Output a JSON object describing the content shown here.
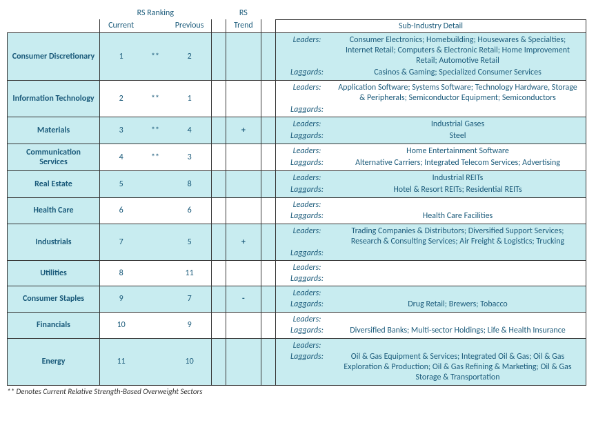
{
  "headers": {
    "rs_ranking": "RS Ranking",
    "current": "Current",
    "previous": "Previous",
    "rs_trend": "RS",
    "trend_sub": "Trend",
    "detail": "Sub-Industry Detail"
  },
  "labels": {
    "leaders": "Leaders:",
    "laggards": "Laggards:"
  },
  "colors": {
    "row_alt": "#c8ecf0",
    "row_base": "#ffffff",
    "text": "#1a5a7a",
    "border": "#333333"
  },
  "footnote": "** Denotes Current Relative Strength-Based Overweight Sectors",
  "rows": [
    {
      "sector": "Consumer Discretionary",
      "current": "1",
      "mark": "**",
      "previous": "2",
      "trend": "",
      "leaders": "Consumer Electronics; Homebuilding; Housewares & Specialties; Internet Retail; Computers & Electronic Retail; Home Improvement Retail; Automotive Retail",
      "laggards": "Casinos & Gaming; Specialized Consumer Services"
    },
    {
      "sector": "Information Technology",
      "current": "2",
      "mark": "**",
      "previous": "1",
      "trend": "",
      "leaders": "Application Software; Systems Software; Technology Hardware, Storage & Peripherals; Semiconductor Equipment; Semiconductors",
      "laggards": ""
    },
    {
      "sector": "Materials",
      "current": "3",
      "mark": "**",
      "previous": "4",
      "trend": "+",
      "leaders": "Industrial Gases",
      "laggards": "Steel"
    },
    {
      "sector": "Communication Services",
      "current": "4",
      "mark": "**",
      "previous": "3",
      "trend": "",
      "leaders": "Home Entertainment Software",
      "laggards": "Alternative Carriers; Integrated Telecom Services; Advertising"
    },
    {
      "sector": "Real Estate",
      "current": "5",
      "mark": "",
      "previous": "8",
      "trend": "",
      "leaders": "Industrial REITs",
      "laggards": "Hotel & Resort REITs; Residential REITs"
    },
    {
      "sector": "Health Care",
      "current": "6",
      "mark": "",
      "previous": "6",
      "trend": "",
      "leaders": "",
      "laggards": "Health Care Facilities"
    },
    {
      "sector": "Industrials",
      "current": "7",
      "mark": "",
      "previous": "5",
      "trend": "+",
      "leaders": "Trading Companies & Distributors; Diversified Support Services; Research & Consulting Services; Air Freight & Logistics; Trucking",
      "laggards": ""
    },
    {
      "sector": "Utilities",
      "current": "8",
      "mark": "",
      "previous": "11",
      "trend": "",
      "leaders": "",
      "laggards": ""
    },
    {
      "sector": "Consumer Staples",
      "current": "9",
      "mark": "",
      "previous": "7",
      "trend": "-",
      "leaders": "",
      "laggards": "Drug Retail; Brewers; Tobacco"
    },
    {
      "sector": "Financials",
      "current": "10",
      "mark": "",
      "previous": "9",
      "trend": "",
      "leaders": "",
      "laggards": "Diversified Banks; Multi-sector Holdings; Life & Health Insurance"
    },
    {
      "sector": "Energy",
      "current": "11",
      "mark": "",
      "previous": "10",
      "trend": "",
      "leaders": "",
      "laggards": "Oil & Gas Equipment & Services; Integrated Oil & Gas; Oil & Gas Exploration & Production; Oil & Gas Refining & Marketing; Oil & Gas Storage & Transportation"
    }
  ]
}
